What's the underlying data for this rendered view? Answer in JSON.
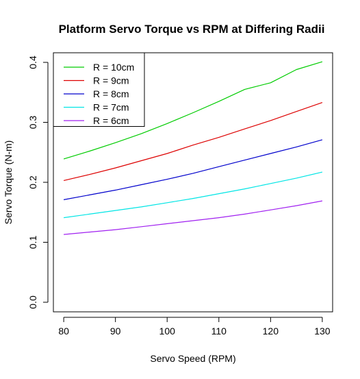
{
  "chart_data": {
    "type": "line",
    "title": "Platform Servo Torque vs RPM at Differing Radii",
    "xlabel": "Servo Speed (RPM)",
    "ylabel": "Servo Torque (N-m)",
    "xlim": [
      78,
      132
    ],
    "ylim": [
      -0.016,
      0.416
    ],
    "x_ticks": [
      80,
      90,
      100,
      110,
      120,
      130
    ],
    "y_ticks": [
      0.0,
      0.1,
      0.2,
      0.3,
      0.4
    ],
    "y_tick_labels": [
      "0.0",
      "0.1",
      "0.2",
      "0.3",
      "0.4"
    ],
    "grid": false,
    "legend_position": "top-left",
    "x": [
      80,
      85,
      90,
      95,
      100,
      105,
      110,
      115,
      120,
      125,
      130
    ],
    "series": [
      {
        "name": "R = 10cm",
        "color": "#00cc00",
        "values": [
          0.239,
          0.252,
          0.266,
          0.281,
          0.298,
          0.316,
          0.335,
          0.355,
          0.366,
          0.388,
          0.401
        ]
      },
      {
        "name": "R = 9cm",
        "color": "#dd0000",
        "values": [
          0.203,
          0.213,
          0.224,
          0.236,
          0.248,
          0.262,
          0.275,
          0.289,
          0.303,
          0.318,
          0.333
        ]
      },
      {
        "name": "R = 8cm",
        "color": "#0000cc",
        "values": [
          0.171,
          0.179,
          0.187,
          0.196,
          0.205,
          0.215,
          0.226,
          0.237,
          0.248,
          0.259,
          0.271
        ]
      },
      {
        "name": "R = 7cm",
        "color": "#00e5e5",
        "values": [
          0.141,
          0.147,
          0.153,
          0.159,
          0.166,
          0.173,
          0.181,
          0.189,
          0.198,
          0.207,
          0.217
        ]
      },
      {
        "name": "R = 6cm",
        "color": "#a020f0",
        "values": [
          0.113,
          0.117,
          0.121,
          0.126,
          0.131,
          0.136,
          0.141,
          0.147,
          0.154,
          0.161,
          0.169
        ]
      }
    ]
  }
}
